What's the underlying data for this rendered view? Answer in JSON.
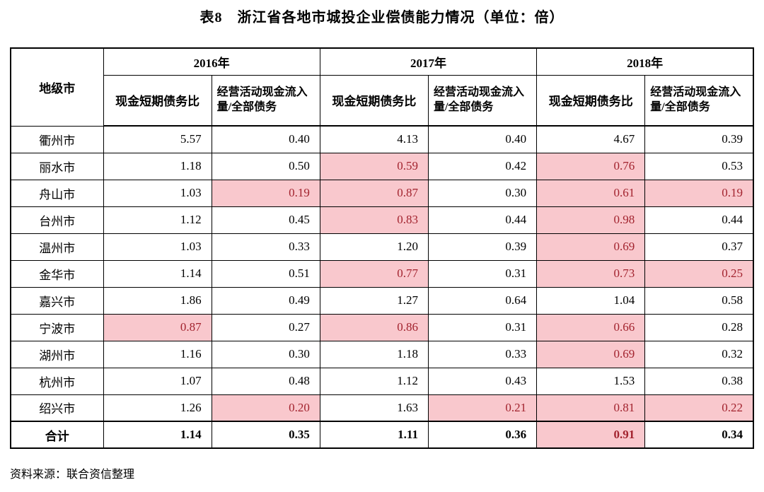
{
  "page": {
    "title": "表8　浙江省各地市城投企业偿债能力情况（单位：倍）",
    "source_note": "资料来源：联合资信整理"
  },
  "colors": {
    "highlight_bg": "#F9C8CD",
    "highlight_text": "#A2232E",
    "border": "#000000",
    "text": "#000000"
  },
  "chart_data": {
    "type": "table",
    "title": "表8　浙江省各地市城投企业偿债能力情况（单位：倍）",
    "unit": "倍",
    "corner_header": "地级市",
    "year_groups": [
      "2016年",
      "2017年",
      "2018年"
    ],
    "sub_headers": [
      "现金短期债务比",
      "经营活动现金流入量/全部债务"
    ],
    "highlight_meaning": "pink cells with dark-red numbers mark weak values",
    "rows": [
      {
        "city": "衢州市",
        "values": [
          "5.57",
          "0.40",
          "4.13",
          "0.40",
          "4.67",
          "0.39"
        ],
        "highlight": [
          0,
          0,
          0,
          0,
          0,
          0
        ],
        "bold": false
      },
      {
        "city": "丽水市",
        "values": [
          "1.18",
          "0.50",
          "0.59",
          "0.42",
          "0.76",
          "0.53"
        ],
        "highlight": [
          0,
          0,
          1,
          0,
          1,
          0
        ],
        "bold": false
      },
      {
        "city": "舟山市",
        "values": [
          "1.03",
          "0.19",
          "0.87",
          "0.30",
          "0.61",
          "0.19"
        ],
        "highlight": [
          0,
          1,
          1,
          0,
          1,
          1
        ],
        "bold": false
      },
      {
        "city": "台州市",
        "values": [
          "1.12",
          "0.45",
          "0.83",
          "0.44",
          "0.98",
          "0.44"
        ],
        "highlight": [
          0,
          0,
          1,
          0,
          1,
          0
        ],
        "bold": false
      },
      {
        "city": "温州市",
        "values": [
          "1.03",
          "0.33",
          "1.20",
          "0.39",
          "0.69",
          "0.37"
        ],
        "highlight": [
          0,
          0,
          0,
          0,
          1,
          0
        ],
        "bold": false
      },
      {
        "city": "金华市",
        "values": [
          "1.14",
          "0.51",
          "0.77",
          "0.31",
          "0.73",
          "0.25"
        ],
        "highlight": [
          0,
          0,
          1,
          0,
          1,
          1
        ],
        "bold": false
      },
      {
        "city": "嘉兴市",
        "values": [
          "1.86",
          "0.49",
          "1.27",
          "0.64",
          "1.04",
          "0.58"
        ],
        "highlight": [
          0,
          0,
          0,
          0,
          0,
          0
        ],
        "bold": false
      },
      {
        "city": "宁波市",
        "values": [
          "0.87",
          "0.27",
          "0.86",
          "0.31",
          "0.66",
          "0.28"
        ],
        "highlight": [
          1,
          0,
          1,
          0,
          1,
          0
        ],
        "bold": false
      },
      {
        "city": "湖州市",
        "values": [
          "1.16",
          "0.30",
          "1.18",
          "0.33",
          "0.69",
          "0.32"
        ],
        "highlight": [
          0,
          0,
          0,
          0,
          1,
          0
        ],
        "bold": false
      },
      {
        "city": "杭州市",
        "values": [
          "1.07",
          "0.48",
          "1.12",
          "0.43",
          "1.53",
          "0.38"
        ],
        "highlight": [
          0,
          0,
          0,
          0,
          0,
          0
        ],
        "bold": false
      },
      {
        "city": "绍兴市",
        "values": [
          "1.26",
          "0.20",
          "1.63",
          "0.21",
          "0.81",
          "0.22"
        ],
        "highlight": [
          0,
          1,
          0,
          1,
          1,
          1
        ],
        "bold": false
      },
      {
        "city": "合计",
        "values": [
          "1.14",
          "0.35",
          "1.11",
          "0.36",
          "0.91",
          "0.34"
        ],
        "highlight": [
          0,
          0,
          0,
          0,
          1,
          0
        ],
        "bold": true
      }
    ]
  }
}
